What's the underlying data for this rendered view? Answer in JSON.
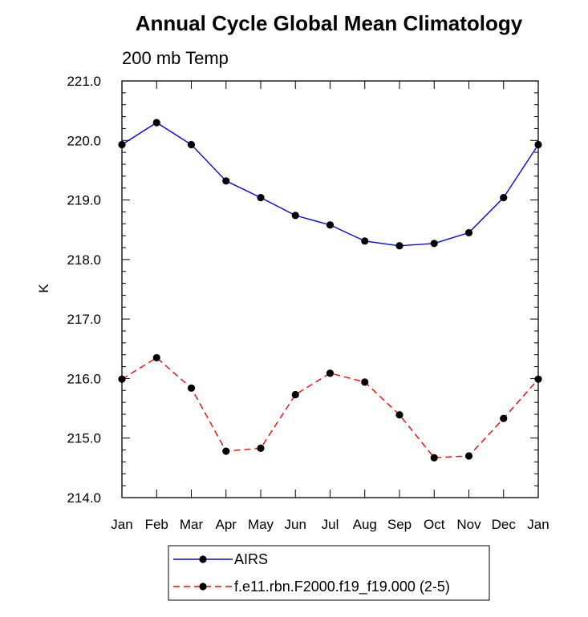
{
  "chart_data": {
    "type": "line",
    "title": "Annual Cycle Global Mean Climatology",
    "subtitle": "200 mb Temp",
    "xlabel": "",
    "ylabel": "K",
    "categories": [
      "Jan",
      "Feb",
      "Mar",
      "Apr",
      "May",
      "Jun",
      "Jul",
      "Aug",
      "Sep",
      "Oct",
      "Nov",
      "Dec",
      "Jan"
    ],
    "ylim": [
      214.0,
      221.0
    ],
    "yticks": [
      "214.0",
      "215.0",
      "216.0",
      "217.0",
      "218.0",
      "219.0",
      "220.0",
      "221.0"
    ],
    "grid": false,
    "legend_position": "bottom",
    "series": [
      {
        "name": "AIRS",
        "color": "#0000ff",
        "line_style": "solid",
        "marker": "filled-circle",
        "values": [
          219.93,
          220.3,
          219.93,
          219.32,
          219.04,
          218.74,
          218.58,
          218.31,
          218.23,
          218.27,
          218.45,
          219.04,
          219.93
        ]
      },
      {
        "name": "f.e11.rbn.F2000.f19_f19.000 (2-5)",
        "color": "#ff0000",
        "line_style": "dashed",
        "marker": "filled-circle",
        "values": [
          215.99,
          216.35,
          215.84,
          214.78,
          214.83,
          215.73,
          216.09,
          215.94,
          215.39,
          214.67,
          214.7,
          215.33,
          215.99
        ]
      }
    ]
  }
}
